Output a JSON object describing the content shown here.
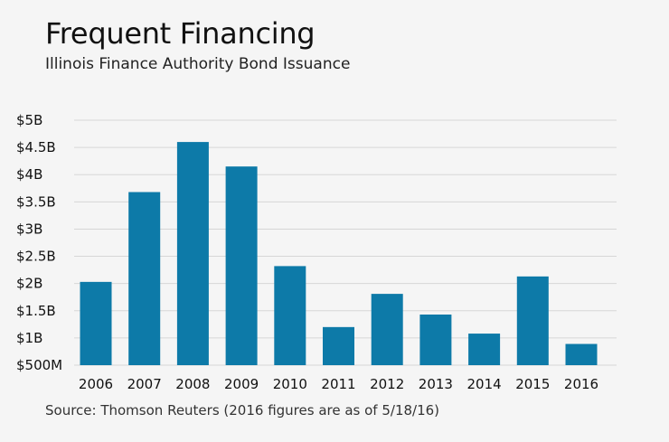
{
  "chart_data": {
    "type": "bar",
    "title": "Frequent Financing",
    "subtitle": "Illinois Finance Authority Bond Issuance",
    "source": "Source: Thomson Reuters (2016 figures are as of 5/18/16)",
    "categories": [
      "2006",
      "2007",
      "2008",
      "2009",
      "2010",
      "2011",
      "2012",
      "2013",
      "2014",
      "2015",
      "2016"
    ],
    "values": [
      2.03,
      3.68,
      4.6,
      4.15,
      2.32,
      1.2,
      1.81,
      1.43,
      1.08,
      2.13,
      0.89
    ],
    "unit": "billions USD",
    "ylim": [
      0.5,
      5
    ],
    "yticks": [
      {
        "value": 0.5,
        "label": "$500M"
      },
      {
        "value": 1,
        "label": "$1B"
      },
      {
        "value": 1.5,
        "label": "$1.5B"
      },
      {
        "value": 2,
        "label": "$2B"
      },
      {
        "value": 2.5,
        "label": "$2.5B"
      },
      {
        "value": 3,
        "label": "$3B"
      },
      {
        "value": 3.5,
        "label": "$3.5B"
      },
      {
        "value": 4,
        "label": "$4B"
      },
      {
        "value": 4.5,
        "label": "$4.5B"
      },
      {
        "value": 5,
        "label": "$5B"
      }
    ],
    "xlabel": "",
    "ylabel": "",
    "grid": true,
    "bar_color": "#0d7aa8",
    "grid_color": "#d6d6d6"
  }
}
